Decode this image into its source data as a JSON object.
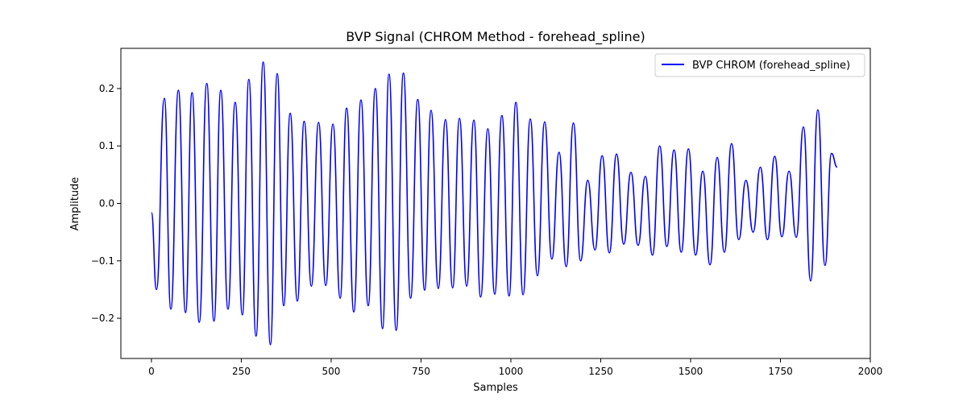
{
  "chart_data": {
    "type": "line",
    "title": "BVP Signal (CHROM Method - forehead_spline)",
    "xlabel": "Samples",
    "ylabel": "Amplitude",
    "xlim": [
      -85,
      2000
    ],
    "ylim": [
      -0.27,
      0.27
    ],
    "xticks": [
      0,
      250,
      500,
      750,
      1000,
      1250,
      1500,
      1750,
      2000
    ],
    "xtick_labels": [
      "0",
      "250",
      "500",
      "750",
      "1000",
      "1250",
      "1500",
      "1750",
      "2000"
    ],
    "yticks": [
      -0.2,
      -0.1,
      0.0,
      0.1,
      0.2
    ],
    "ytick_labels": [
      "−0.2",
      "−0.1",
      "0.0",
      "0.1",
      "0.2"
    ],
    "grid": false,
    "legend_position": "top-right",
    "series": [
      {
        "name": "BVP CHROM (forehead_spline)",
        "color": "#0000ff",
        "x": [
          0,
          14,
          36,
          54,
          75,
          95,
          113,
          133,
          154,
          174,
          193,
          213,
          233,
          253,
          271,
          291,
          311,
          331,
          350,
          368,
          386,
          406,
          425,
          445,
          465,
          485,
          505,
          525,
          543,
          563,
          583,
          603,
          623,
          643,
          661,
          681,
          701,
          721,
          741,
          760,
          778,
          798,
          818,
          838,
          857,
          877,
          897,
          916,
          936,
          955,
          975,
          995,
          1014,
          1034,
          1054,
          1074,
          1094,
          1114,
          1134,
          1154,
          1174,
          1194,
          1214,
          1234,
          1254,
          1274,
          1294,
          1314,
          1334,
          1354,
          1374,
          1394,
          1414,
          1434,
          1454,
          1474,
          1494,
          1514,
          1534,
          1554,
          1574,
          1594,
          1614,
          1634,
          1654,
          1674,
          1694,
          1714,
          1734,
          1754,
          1774,
          1794,
          1814,
          1834,
          1854,
          1874,
          1892,
          1908
        ],
        "y": [
          -0.016,
          -0.15,
          0.183,
          -0.184,
          0.197,
          -0.19,
          0.193,
          -0.207,
          0.209,
          -0.205,
          0.197,
          -0.184,
          0.176,
          -0.194,
          0.216,
          -0.231,
          0.246,
          -0.246,
          0.226,
          -0.178,
          0.157,
          -0.17,
          0.143,
          -0.144,
          0.141,
          -0.143,
          0.138,
          -0.165,
          0.166,
          -0.189,
          0.18,
          -0.178,
          0.2,
          -0.218,
          0.225,
          -0.221,
          0.227,
          -0.165,
          0.181,
          -0.151,
          0.162,
          -0.148,
          0.146,
          -0.147,
          0.148,
          -0.144,
          0.145,
          -0.163,
          0.13,
          -0.158,
          0.153,
          -0.161,
          0.176,
          -0.159,
          0.147,
          -0.126,
          0.142,
          -0.097,
          0.089,
          -0.11,
          0.14,
          -0.1,
          0.04,
          -0.081,
          0.083,
          -0.086,
          0.086,
          -0.071,
          0.054,
          -0.073,
          0.047,
          -0.09,
          0.1,
          -0.075,
          0.093,
          -0.085,
          0.095,
          -0.09,
          0.056,
          -0.107,
          0.08,
          -0.085,
          0.104,
          -0.063,
          0.04,
          -0.05,
          0.063,
          -0.063,
          0.082,
          -0.058,
          0.056,
          -0.059,
          0.133,
          -0.135,
          0.163,
          -0.108,
          0.087,
          0.063
        ]
      }
    ]
  }
}
